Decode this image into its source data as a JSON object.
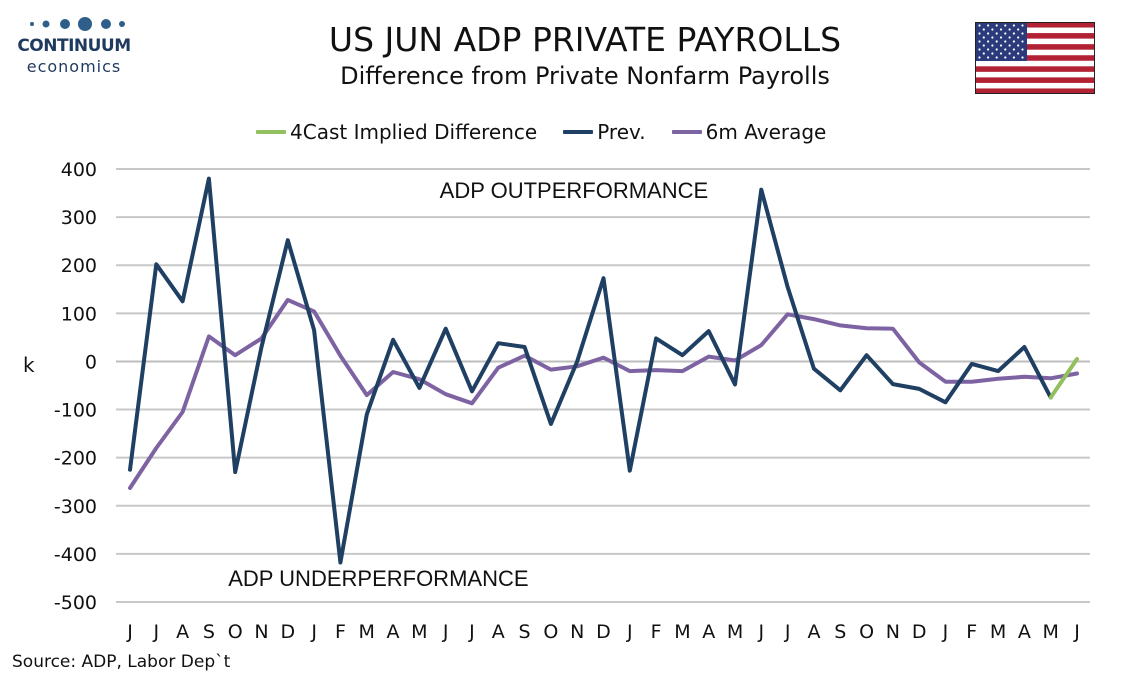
{
  "logo": {
    "name": "CONTINUUM",
    "sub": "economics",
    "dot_color": "#2e5f8a"
  },
  "header": {
    "title": "US JUN ADP PRIVATE PAYROLLS",
    "subtitle": "Difference from Private Nonfarm Payrolls",
    "flag": "us-flag"
  },
  "source": "Source: ADP, Labor Dep`t",
  "chart_data": {
    "type": "line",
    "ylabel": "k",
    "ylim": [
      -500,
      400
    ],
    "yticks": [
      400,
      300,
      200,
      100,
      0,
      -100,
      -200,
      -300,
      -400,
      -500
    ],
    "grid": true,
    "legend_placement": "top",
    "categories": [
      "J",
      "J",
      "A",
      "S",
      "O",
      "N",
      "D",
      "J",
      "F",
      "M",
      "A",
      "M",
      "J",
      "J",
      "A",
      "S",
      "O",
      "N",
      "D",
      "J",
      "F",
      "M",
      "A",
      "M",
      "J",
      "J",
      "A",
      "S",
      "O",
      "N",
      "D",
      "J",
      "F",
      "M",
      "A",
      "M",
      "J"
    ],
    "series": [
      {
        "name": "4Cast Implied Difference",
        "color": "#92c05f",
        "values": [
          null,
          null,
          null,
          null,
          null,
          null,
          null,
          null,
          null,
          null,
          null,
          null,
          null,
          null,
          null,
          null,
          null,
          null,
          null,
          null,
          null,
          null,
          null,
          null,
          null,
          null,
          null,
          null,
          null,
          null,
          null,
          null,
          null,
          null,
          null,
          -75,
          5
        ]
      },
      {
        "name": "Prev.",
        "color": "#1f3f63",
        "values": [
          -225,
          202,
          125,
          380,
          -230,
          30,
          252,
          65,
          -418,
          -110,
          45,
          -55,
          68,
          -62,
          38,
          30,
          -130,
          0,
          173,
          -227,
          48,
          13,
          63,
          -48,
          357,
          155,
          -15,
          -60,
          13,
          -47,
          -57,
          -85,
          -5,
          -20,
          30,
          -75,
          null
        ]
      },
      {
        "name": "6m Average",
        "color": "#7e63a3",
        "values": [
          -263,
          -180,
          -105,
          52,
          13,
          48,
          128,
          104,
          12,
          -70,
          -22,
          -37,
          -68,
          -87,
          -13,
          12,
          -17,
          -10,
          8,
          -20,
          -18,
          -20,
          10,
          2,
          34,
          98,
          88,
          75,
          69,
          68,
          -2,
          -42,
          -42,
          -36,
          -32,
          -35,
          -25
        ]
      }
    ],
    "annotations": [
      {
        "text": "ADP OUTPERFORMANCE",
        "anchor_category_index": 12,
        "y": 350
      },
      {
        "text": "ADP UNDERPERFORMANCE",
        "anchor_category_index": 4,
        "y": -460
      }
    ]
  }
}
